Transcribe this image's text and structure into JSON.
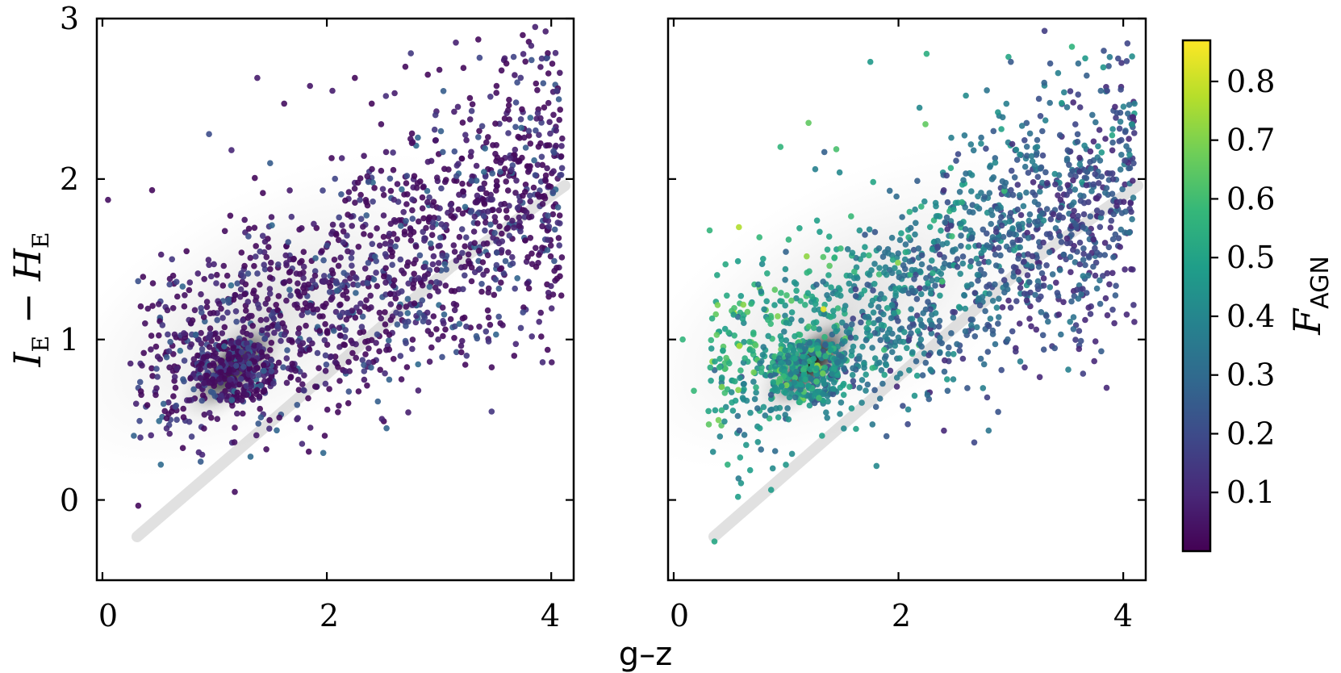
{
  "figure": {
    "shared_xlabel": "g–z",
    "colorbar_label": "F",
    "colorbar_label_sub": "AGN"
  },
  "chart_data": [
    {
      "type": "scatter",
      "panel": "left",
      "xlabel": "g–z",
      "ylabel": "I",
      "ylabel_sub1": "E",
      "ylabel_mid": " − ",
      "ylabel_main2": "H",
      "ylabel_sub2": "E",
      "xlim": [
        -0.05,
        4.2
      ],
      "ylim": [
        -0.5,
        3.0
      ],
      "xticks": [
        0,
        2,
        4
      ],
      "yticks": [
        0,
        1,
        2,
        3
      ],
      "xtick_labels": [
        "0",
        "2",
        "4"
      ],
      "ytick_labels": [
        "0",
        "1",
        "2",
        "3"
      ],
      "color_encoding": "F_AGN (mostly < 0.15, dark purple)",
      "background_density": "grey 2D histogram of full galaxy sample; dense core near (1.2, 0.8) with a thin tail running from (0.3, -0.3) to (4, 1.9)",
      "series": [
        {
          "points": [
            [
              0.05,
              1.87
            ],
            [
              0.28,
              0.4
            ],
            [
              0.52,
              0.22
            ],
            [
              1.18,
              0.05
            ],
            [
              1.32,
              0.27
            ],
            [
              0.38,
              1.1
            ],
            [
              0.45,
              1.35
            ],
            [
              0.62,
              1.5
            ],
            [
              0.75,
              1.55
            ],
            [
              0.95,
              2.28
            ],
            [
              1.15,
              2.18
            ],
            [
              1.38,
              2.63
            ],
            [
              1.62,
              2.47
            ],
            [
              1.85,
              2.58
            ],
            [
              2.05,
              2.55
            ],
            [
              2.25,
              2.63
            ],
            [
              2.4,
              2.47
            ],
            [
              2.7,
              2.7
            ],
            [
              2.9,
              2.65
            ],
            [
              3.15,
              2.85
            ],
            [
              3.35,
              2.87
            ],
            [
              3.6,
              2.72
            ],
            [
              3.95,
              2.92
            ],
            [
              4.05,
              2.55
            ],
            [
              4.02,
              2.4
            ],
            [
              3.7,
              1.82
            ],
            [
              3.8,
              2.3
            ],
            [
              1.18,
              0.45
            ],
            [
              0.25,
              0.85
            ],
            [
              0.3,
              0.6
            ]
          ]
        }
      ]
    },
    {
      "type": "scatter",
      "panel": "right",
      "xlabel": "g–z",
      "xlim": [
        -0.05,
        4.2
      ],
      "ylim": [
        -0.5,
        3.0
      ],
      "xticks": [
        0,
        2,
        4
      ],
      "yticks": [
        0,
        1,
        2,
        3
      ],
      "xtick_labels": [
        "0",
        "2",
        "4"
      ],
      "color_encoding": "F_AGN (0.1–0.85, viridis)",
      "background_density": "grey 2D histogram of full galaxy sample; dense core near (1.25, 0.85) with a thin tail running from (0.3, -0.25) to (4, 1.9)",
      "series": [
        {
          "points": [
            [
              0.08,
              1.0
            ],
            [
              0.18,
              0.68
            ],
            [
              0.35,
              0.3
            ],
            [
              0.48,
              0.22
            ],
            [
              0.58,
              1.7
            ],
            [
              0.32,
              1.68
            ],
            [
              0.95,
              2.2
            ],
            [
              1.2,
              2.35
            ],
            [
              1.75,
              2.73
            ],
            [
              2.25,
              2.78
            ],
            [
              2.6,
              2.52
            ],
            [
              3.0,
              2.73
            ],
            [
              3.35,
              2.72
            ],
            [
              3.6,
              2.72
            ],
            [
              3.8,
              2.55
            ],
            [
              3.88,
              2.76
            ],
            [
              4.1,
              2.47
            ],
            [
              4.05,
              2.25
            ],
            [
              3.5,
              1.63
            ],
            [
              1.8,
              0.58
            ],
            [
              1.32,
              0.4
            ],
            [
              2.5,
              1.17
            ],
            [
              2.2,
              1.0
            ]
          ]
        }
      ]
    }
  ],
  "colorbar": {
    "range": [
      0.0,
      0.87
    ],
    "ticks": [
      0.1,
      0.2,
      0.3,
      0.4,
      0.5,
      0.6,
      0.7,
      0.8
    ],
    "tick_labels": [
      "0.1",
      "0.2",
      "0.3",
      "0.4",
      "0.5",
      "0.6",
      "0.7",
      "0.8"
    ],
    "colormap": "viridis",
    "colormap_stops": [
      "#440154",
      "#482878",
      "#3e4989",
      "#31688e",
      "#26828e",
      "#1f9e89",
      "#35b779",
      "#6ece58",
      "#b5de2b",
      "#fde725"
    ]
  }
}
